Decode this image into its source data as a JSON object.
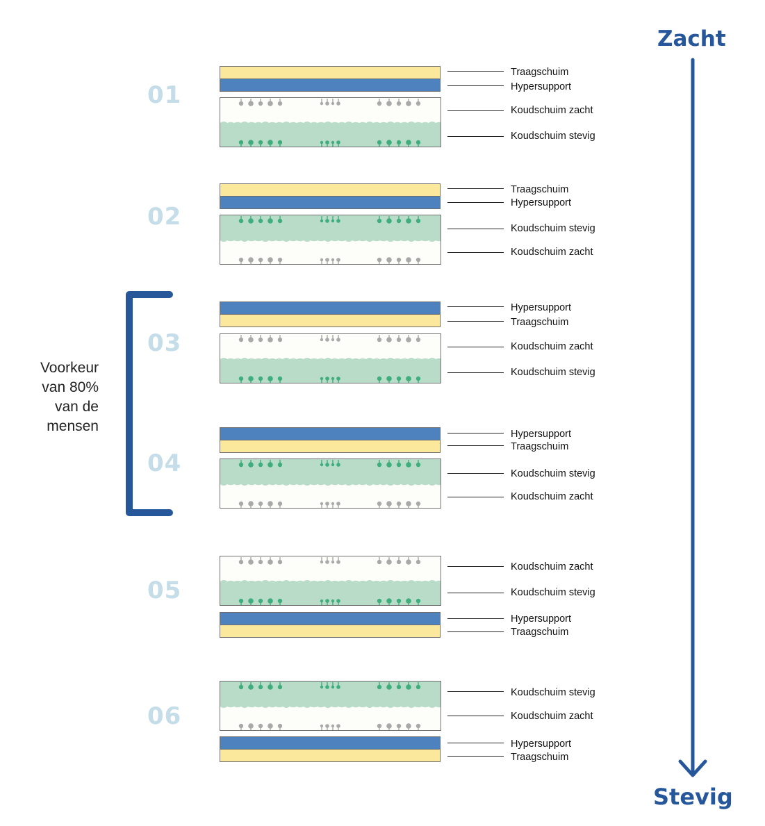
{
  "scale": {
    "top_label": "Zacht",
    "bottom_label": "Stevig"
  },
  "preference": {
    "lines": [
      "Voorkeur",
      "van 80%",
      "van de",
      "mensen"
    ]
  },
  "colors": {
    "traagschuim": "#fbe89c",
    "hypersupport": "#4d82be",
    "koudschuim_stevig": "#b9dcc8",
    "koudschuim_zacht": "#fdfdf9",
    "accent": "#27579b",
    "number": "#c4dde8"
  },
  "configurations": [
    {
      "number": "01",
      "layers": [
        "Traagschuim",
        "Hypersupport",
        "Koudschuim zacht",
        "Koudschuim stevig"
      ]
    },
    {
      "number": "02",
      "layers": [
        "Traagschuim",
        "Hypersupport",
        "Koudschuim stevig",
        "Koudschuim zacht"
      ]
    },
    {
      "number": "03",
      "layers": [
        "Hypersupport",
        "Traagschuim",
        "Koudschuim zacht",
        "Koudschuim stevig"
      ]
    },
    {
      "number": "04",
      "layers": [
        "Hypersupport",
        "Traagschuim",
        "Koudschuim stevig",
        "Koudschuim zacht"
      ]
    },
    {
      "number": "05",
      "layers": [
        "Koudschuim zacht",
        "Koudschuim stevig",
        "Hypersupport",
        "Traagschuim"
      ]
    },
    {
      "number": "06",
      "layers": [
        "Koudschuim stevig",
        "Koudschuim zacht",
        "Hypersupport",
        "Traagschuim"
      ]
    }
  ]
}
